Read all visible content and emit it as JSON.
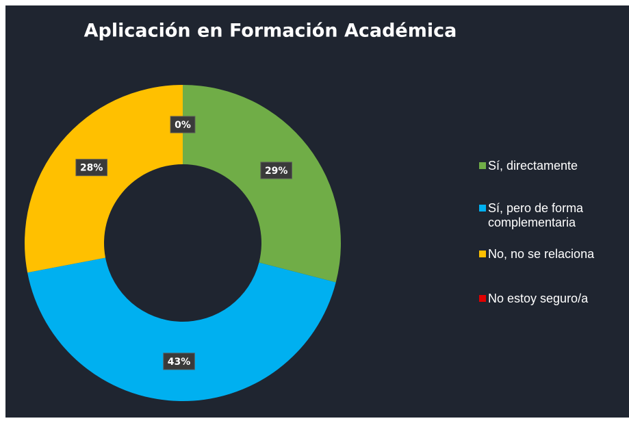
{
  "chart_data": {
    "type": "donut",
    "title": "Aplicación en Formación Académica",
    "categories": [
      "Sí, directamente",
      "Sí, pero de forma complementaria",
      "No, no se relaciona",
      "No estoy seguro/a"
    ],
    "values": [
      29,
      43,
      28,
      0
    ],
    "value_labels": [
      "29%",
      "43%",
      "28%",
      "0%"
    ],
    "colors": [
      "#70ad47",
      "#00b0f0",
      "#ffc000",
      "#e00000"
    ],
    "legend": "right"
  }
}
